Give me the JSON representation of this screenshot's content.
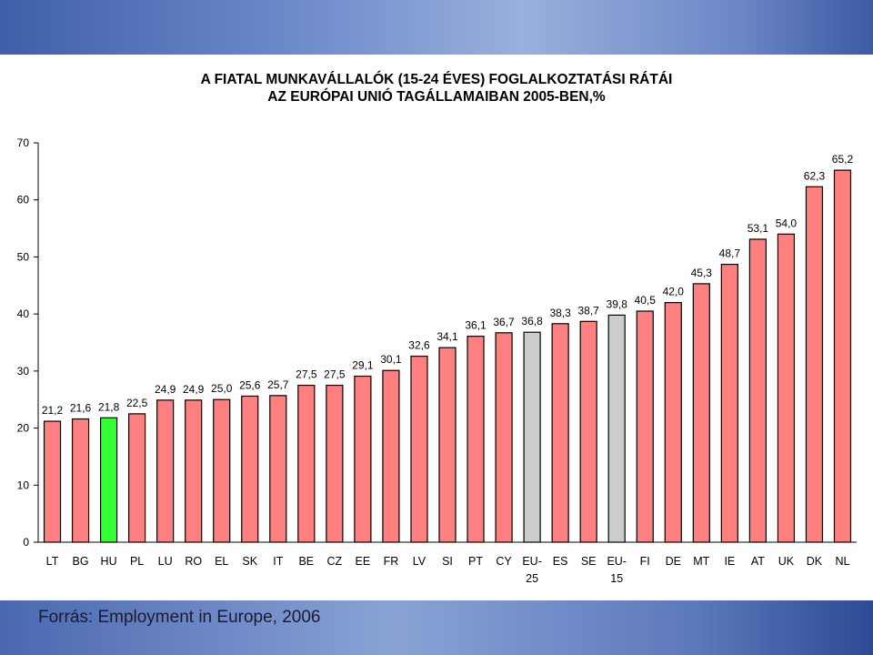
{
  "title_lines": [
    "A FIATAL MUNKAVÁLLALÓK (15-24 ÉVES) FOGLALKOZTATÁSI RÁTÁI",
    "AZ EURÓPAI UNIÓ TAGÁLLAMAIBAN 2005-BEN,%"
  ],
  "source_text": "Forrás: Employment in Europe, 2006",
  "colors": {
    "default_bar": "#ff8080",
    "highlight_bar": "#33ff33",
    "eu_average_bar": "#cccccc",
    "band": "#4a68b0"
  },
  "chart_data": {
    "type": "bar",
    "title": "A FIATAL MUNKAVÁLLALÓK (15-24 ÉVES) FOGLALKOZTATÁSI RÁTÁI AZ EURÓPAI UNIÓ TAGÁLLAMAIBAN 2005-BEN,%",
    "categories": [
      "LT",
      "BG",
      "HU",
      "PL",
      "LU",
      "RO",
      "EL",
      "SK",
      "IT",
      "BE",
      "CZ",
      "EE",
      "FR",
      "LV",
      "SI",
      "PT",
      "CY",
      "EU-25",
      "ES",
      "SE",
      "EU-15",
      "FI",
      "DE",
      "MT",
      "IE",
      "AT",
      "UK",
      "DK",
      "NL"
    ],
    "values": [
      21.2,
      21.6,
      21.8,
      22.5,
      24.9,
      24.9,
      25.0,
      25.6,
      25.7,
      27.5,
      27.5,
      29.1,
      30.1,
      32.6,
      34.1,
      36.1,
      36.7,
      36.8,
      38.3,
      38.7,
      39.8,
      40.5,
      42.0,
      45.3,
      48.7,
      53.1,
      54.0,
      62.3,
      65.2
    ],
    "value_labels": [
      "21,2",
      "21,6",
      "21,8",
      "22,5",
      "24,9",
      "24,9",
      "25,0",
      "25,6",
      "25,7",
      "27,5",
      "27,5",
      "29,1",
      "30,1",
      "32,6",
      "34,1",
      "36,1",
      "36,7",
      "36,8",
      "38,3",
      "38,7",
      "39,8",
      "40,5",
      "42,0",
      "45,3",
      "48,7",
      "53,1",
      "54,0",
      "62,3",
      "65,2"
    ],
    "highlight": {
      "HU": "green",
      "EU-25": "gray",
      "EU-15": "gray"
    },
    "ylim": [
      0,
      70
    ],
    "yticks": [
      0,
      10,
      20,
      30,
      40,
      50,
      60,
      70
    ],
    "xlabel": "",
    "ylabel": "",
    "grid": false,
    "legend": "none"
  }
}
